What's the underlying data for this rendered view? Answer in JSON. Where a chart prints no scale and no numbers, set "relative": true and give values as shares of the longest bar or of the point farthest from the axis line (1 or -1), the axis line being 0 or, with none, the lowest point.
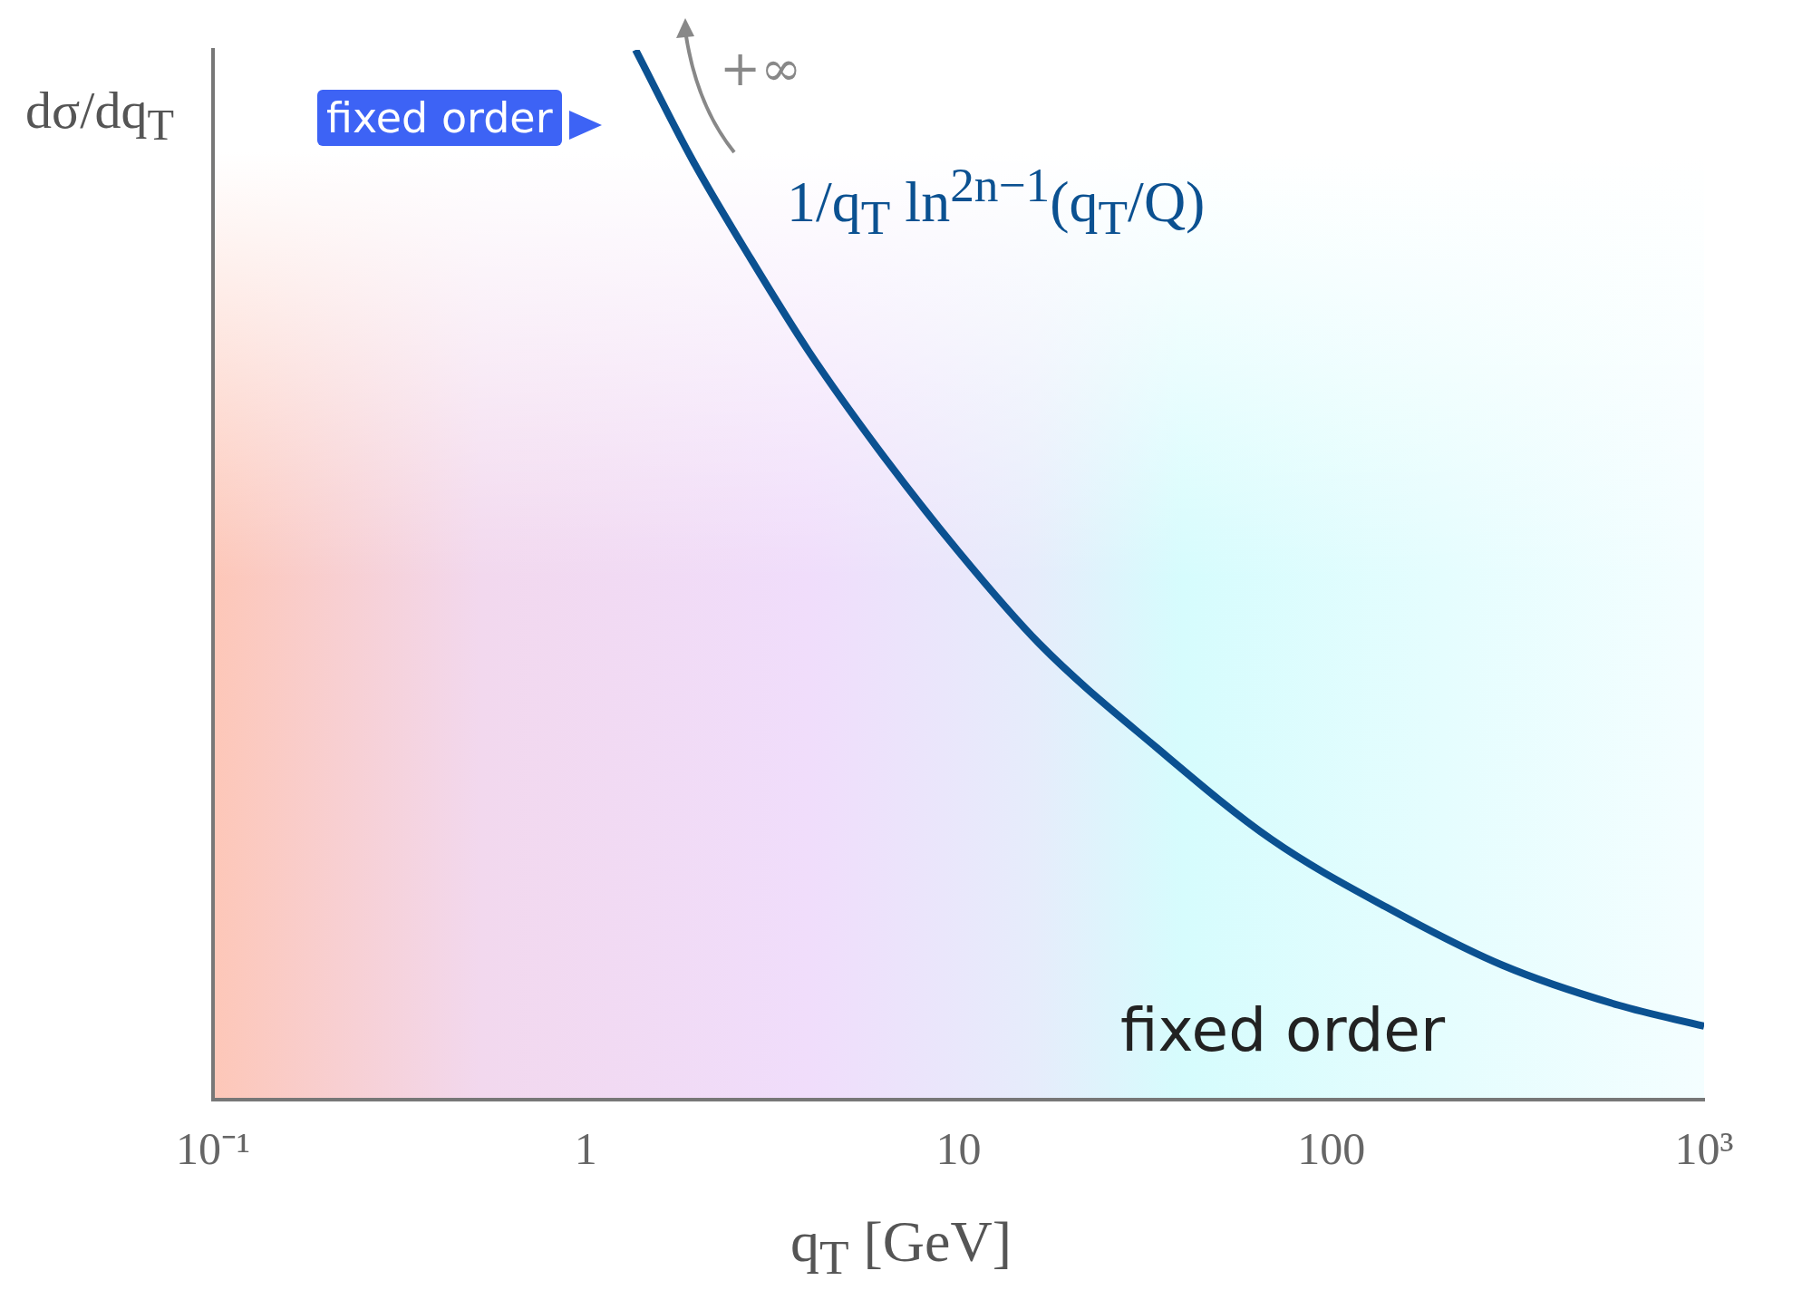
{
  "chart_data": {
    "type": "line",
    "relative": true,
    "log": "x",
    "grid": false,
    "legend": false,
    "marker": "none",
    "line_style": "solid",
    "xlabel": "q$_{T}$ [GeV]",
    "ylabel": "dσ/dq$_{T}$",
    "xlim": [
      0.1,
      1000
    ],
    "xticks": [
      {
        "value": 0.1,
        "label": "10⁻¹"
      },
      1,
      10,
      100,
      {
        "value": 1000,
        "label": "10³"
      }
    ],
    "x": [
      1.36,
      1.94,
      2.77,
      3.96,
      6.08,
      10,
      16.5,
      33.8,
      69,
      141,
      288,
      589,
      1000
    ],
    "series": [
      {
        "color": "#0b5191",
        "values": [
          1,
          0.894,
          0.801,
          0.713,
          0.62,
          0.522,
          0.434,
          0.336,
          0.248,
          0.183,
          0.128,
          0.09,
          0.07
        ]
      }
    ],
    "annotations": [
      "fixed order",
      "+∞",
      "1/q$_{T}$ ln$^{2n−1}$(q$_{T}$/Q)",
      "fixed order"
    ]
  }
}
